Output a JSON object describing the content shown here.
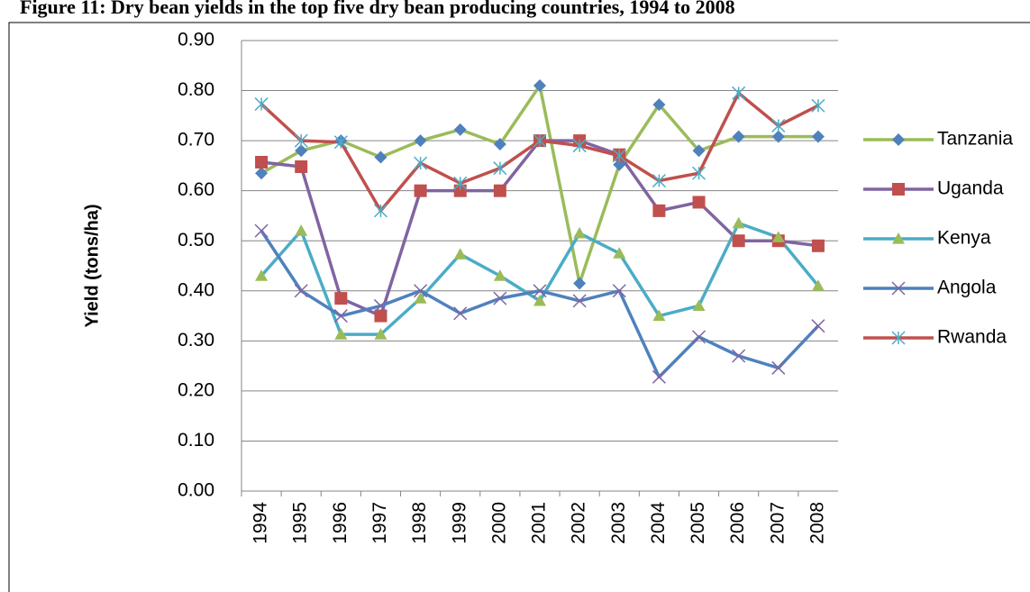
{
  "chart_data": {
    "type": "line",
    "title": "Figure 11: Dry bean yields in the top five dry bean producing countries, 1994 to 2008",
    "y_label": "Yield (tons/ha)",
    "categories": [
      "1994",
      "1995",
      "1996",
      "1997",
      "1998",
      "1999",
      "2000",
      "2001",
      "2002",
      "2003",
      "2004",
      "2005",
      "2006",
      "2007",
      "2008"
    ],
    "series": [
      {
        "name": "Tanzania",
        "color": "#9bbb59",
        "marker": "diamond",
        "marker_color": "#4f81bd",
        "values": [
          0.635,
          0.68,
          0.7,
          0.667,
          0.7,
          0.722,
          0.693,
          0.81,
          0.415,
          0.652,
          0.772,
          0.68,
          0.708,
          0.708,
          0.708
        ]
      },
      {
        "name": "Uganda",
        "color": "#8064a2",
        "marker": "square",
        "marker_color": "#c0504d",
        "values": [
          0.657,
          0.648,
          0.385,
          0.35,
          0.6,
          0.6,
          0.6,
          0.7,
          0.7,
          0.672,
          0.56,
          0.577,
          0.5,
          0.5,
          0.49
        ]
      },
      {
        "name": "Kenya",
        "color": "#4bacc6",
        "marker": "triangle",
        "marker_color": "#9bbb59",
        "values": [
          0.43,
          0.52,
          0.313,
          0.313,
          0.385,
          0.473,
          0.43,
          0.38,
          0.515,
          0.475,
          0.35,
          0.37,
          0.535,
          0.507,
          0.41
        ]
      },
      {
        "name": "Angola",
        "color": "#4f81bd",
        "marker": "x",
        "marker_color": "#8064a2",
        "values": [
          0.52,
          0.4,
          0.35,
          0.37,
          0.4,
          0.355,
          0.385,
          0.4,
          0.38,
          0.4,
          0.228,
          0.308,
          0.27,
          0.246,
          0.33
        ]
      },
      {
        "name": "Rwanda",
        "color": "#c0504d",
        "marker": "asterisk",
        "marker_color": "#4bacc6",
        "values": [
          0.773,
          0.7,
          0.697,
          0.56,
          0.655,
          0.615,
          0.645,
          0.7,
          0.69,
          0.67,
          0.62,
          0.635,
          0.795,
          0.73,
          0.77
        ]
      }
    ],
    "ylim": [
      0,
      0.9
    ],
    "yticks": [
      {
        "value": 0,
        "label": "0.00"
      },
      {
        "value": 0.1,
        "label": "0.10"
      },
      {
        "value": 0.2,
        "label": "0.20"
      },
      {
        "value": 0.3,
        "label": "0.30"
      },
      {
        "value": 0.4,
        "label": "0.40"
      },
      {
        "value": 0.5,
        "label": "0.50"
      },
      {
        "value": 0.6,
        "label": "0.60"
      },
      {
        "value": 0.7,
        "label": "0.70"
      },
      {
        "value": 0.8,
        "label": "0.80"
      },
      {
        "value": 0.9,
        "label": "0.90"
      }
    ],
    "grid": true,
    "legend": "right"
  }
}
